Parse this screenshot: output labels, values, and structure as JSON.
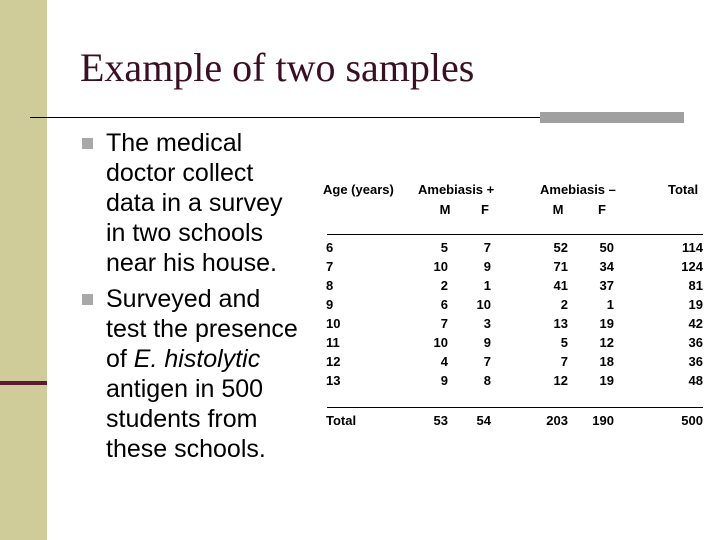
{
  "slide": {
    "title": "Example of two samples",
    "bullets": [
      {
        "pre": "The medical doctor collect data in a survey in two schools near his house.",
        "italic": "",
        "post": ""
      },
      {
        "pre": "Surveyed and test the presence of ",
        "italic": "E. histolytic",
        "post": " antigen in 500 students from these schools."
      }
    ]
  },
  "table": {
    "headers": {
      "age": "Age (years)",
      "amebiasis_pos": "Amebiasis +",
      "amebiasis_neg": "Amebiasis –",
      "total": "Total",
      "m": "M",
      "f": "F"
    },
    "rows": [
      [
        "6",
        "5",
        "7",
        "52",
        "50",
        "114"
      ],
      [
        "7",
        "10",
        "9",
        "71",
        "34",
        "124"
      ],
      [
        "8",
        "2",
        "1",
        "41",
        "37",
        "81"
      ],
      [
        "9",
        "6",
        "10",
        "2",
        "1",
        "19"
      ],
      [
        "10",
        "7",
        "3",
        "13",
        "19",
        "42"
      ],
      [
        "11",
        "10",
        "9",
        "5",
        "12",
        "36"
      ],
      [
        "12",
        "4",
        "7",
        "7",
        "18",
        "36"
      ],
      [
        "13",
        "9",
        "8",
        "12",
        "19",
        "48"
      ]
    ],
    "total_row": [
      "Total",
      "53",
      "54",
      "203",
      "190",
      "500"
    ]
  }
}
